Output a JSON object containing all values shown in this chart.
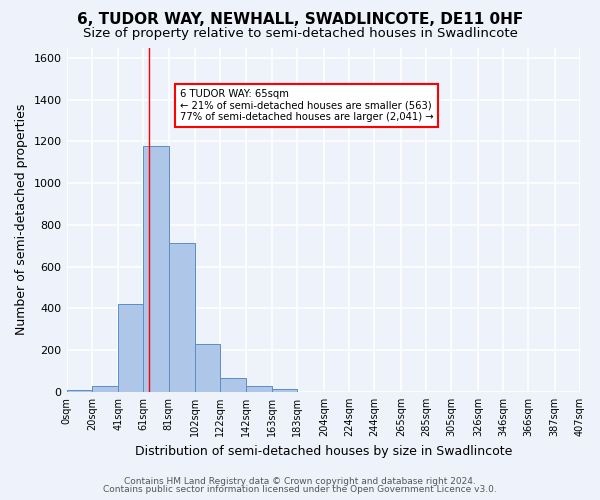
{
  "title": "6, TUDOR WAY, NEWHALL, SWADLINCOTE, DE11 0HF",
  "subtitle": "Size of property relative to semi-detached houses in Swadlincote",
  "xlabel": "Distribution of semi-detached houses by size in Swadlincote",
  "ylabel": "Number of semi-detached properties",
  "footnote1": "Contains HM Land Registry data © Crown copyright and database right 2024.",
  "footnote2": "Contains public sector information licensed under the Open Government Licence v3.0.",
  "bin_labels": [
    "0sqm",
    "20sqm",
    "41sqm",
    "61sqm",
    "81sqm",
    "102sqm",
    "122sqm",
    "142sqm",
    "163sqm",
    "183sqm",
    "204sqm",
    "224sqm",
    "244sqm",
    "265sqm",
    "285sqm",
    "305sqm",
    "326sqm",
    "346sqm",
    "366sqm",
    "387sqm",
    "407sqm"
  ],
  "bar_values": [
    10,
    28,
    420,
    1180,
    715,
    230,
    65,
    30,
    14,
    0,
    0,
    0,
    0,
    0,
    0,
    0,
    0,
    0,
    0,
    0
  ],
  "bar_color": "#aec6e8",
  "bar_edge_color": "#5b8ec4",
  "property_line_x": 65,
  "property_line_color": "red",
  "annotation_text": "6 TUDOR WAY: 65sqm\n← 21% of semi-detached houses are smaller (563)\n77% of semi-detached houses are larger (2,041) →",
  "annotation_box_color": "white",
  "annotation_box_edge": "red",
  "ylim": [
    0,
    1650
  ],
  "background_color": "#eef2fb",
  "grid_color": "white",
  "title_fontsize": 11,
  "subtitle_fontsize": 9.5,
  "axis_label_fontsize": 9,
  "tick_fontsize": 7,
  "footnote_fontsize": 6.5
}
